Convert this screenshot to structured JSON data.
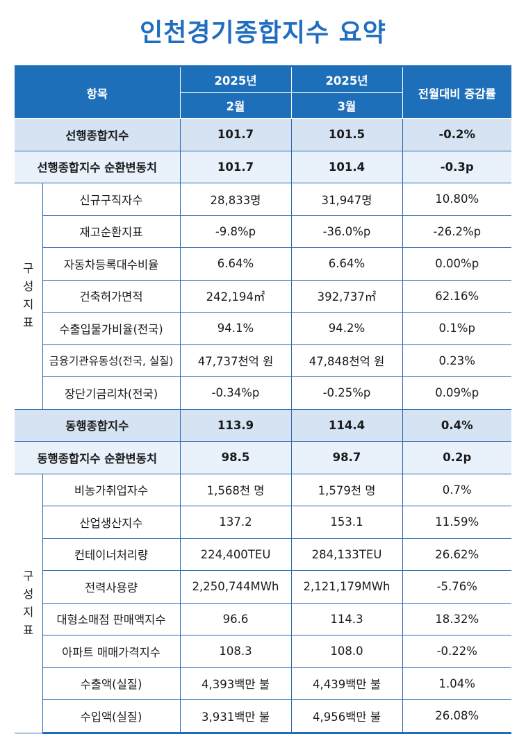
{
  "title": "인천경기종합지수 요약",
  "header": {
    "item": "항목",
    "year1": "2025년",
    "year2": "2025년",
    "month1": "2월",
    "month2": "3월",
    "change": "전월대비 증감률"
  },
  "group_label_chars": [
    "구",
    "성",
    "지",
    "표"
  ],
  "leading": {
    "summary": {
      "label": "선행종합지수",
      "feb": "101.7",
      "mar": "101.5",
      "chg": "-0.2%"
    },
    "cyclical": {
      "label": "선행종합지수 순환변동치",
      "feb": "101.7",
      "mar": "101.4",
      "chg": "-0.3p"
    },
    "components": [
      {
        "label": "신규구직자수",
        "feb": "28,833명",
        "mar": "31,947명",
        "chg": "10.80%"
      },
      {
        "label": "재고순환지표",
        "feb": "-9.8%p",
        "mar": "-36.0%p",
        "chg": "-26.2%p"
      },
      {
        "label": "자동차등록대수비율",
        "feb": "6.64%",
        "mar": "6.64%",
        "chg": "0.00%p"
      },
      {
        "label": "건축허가면적",
        "feb": "242,194㎡",
        "mar": "392,737㎡",
        "chg": "62.16%"
      },
      {
        "label": "수출입물가비율(전국)",
        "feb": "94.1%",
        "mar": "94.2%",
        "chg": "0.1%p"
      },
      {
        "label": "금융기관유동성(전국, 실질)",
        "feb": "47,737천억 원",
        "mar": "47,848천억 원",
        "chg": "0.23%"
      },
      {
        "label": "장단기금리차(전국)",
        "feb": "-0.34%p",
        "mar": "-0.25%p",
        "chg": "0.09%p"
      }
    ]
  },
  "coincident": {
    "summary": {
      "label": "동행종합지수",
      "feb": "113.9",
      "mar": "114.4",
      "chg": "0.4%"
    },
    "cyclical": {
      "label": "동행종합지수 순환변동치",
      "feb": "98.5",
      "mar": "98.7",
      "chg": "0.2p"
    },
    "components": [
      {
        "label": "비농가취업자수",
        "feb": "1,568천 명",
        "mar": "1,579천 명",
        "chg": "0.7%"
      },
      {
        "label": "산업생산지수",
        "feb": "137.2",
        "mar": "153.1",
        "chg": "11.59%"
      },
      {
        "label": "컨테이너처리량",
        "feb": "224,400TEU",
        "mar": "284,133TEU",
        "chg": "26.62%"
      },
      {
        "label": "전력사용량",
        "feb": "2,250,744MWh",
        "mar": "2,121,179MWh",
        "chg": "-5.76%"
      },
      {
        "label": "대형소매점 판매액지수",
        "feb": "96.6",
        "mar": "114.3",
        "chg": "18.32%"
      },
      {
        "label": "아파트 매매가격지수",
        "feb": "108.3",
        "mar": "108.0",
        "chg": "-0.22%"
      },
      {
        "label": "수출액(실질)",
        "feb": "4,393백만 불",
        "mar": "4,439백만 불",
        "chg": "1.04%"
      },
      {
        "label": "수입액(실질)",
        "feb": "3,931백만 불",
        "mar": "4,956백만 불",
        "chg": "26.08%"
      }
    ]
  }
}
